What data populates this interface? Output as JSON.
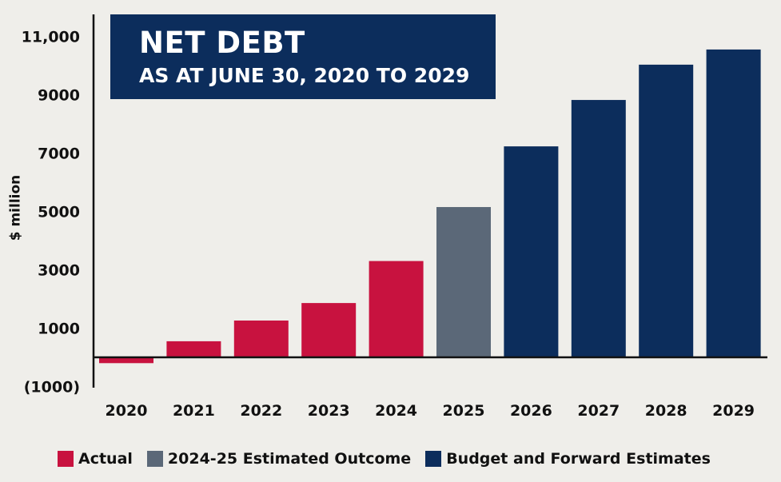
{
  "title": "NET DEBT",
  "subtitle": "AS AT JUNE 30, 2020 TO 2029",
  "chart_data": {
    "type": "bar",
    "title": "NET DEBT",
    "subtitle": "AS AT JUNE 30, 2020 TO 2029",
    "xlabel": "",
    "ylabel": "$ million",
    "ylim": [
      -1000,
      11000
    ],
    "yticks": [
      -1000,
      1000,
      3000,
      5000,
      7000,
      9000,
      11000
    ],
    "ytick_labels": [
      "(1000)",
      "1000",
      "3000",
      "5000",
      "7000",
      "9000",
      "11,000"
    ],
    "categories": [
      "2020",
      "2021",
      "2022",
      "2023",
      "2024",
      "2025",
      "2026",
      "2027",
      "2028",
      "2029"
    ],
    "values": [
      -200,
      550,
      1260,
      1860,
      3300,
      5150,
      7230,
      8820,
      10030,
      10550
    ],
    "bar_series": [
      "Actual",
      "Actual",
      "Actual",
      "Actual",
      "Actual",
      "2024-25 Estimated Outcome",
      "Budget and Forward Estimates",
      "Budget and Forward Estimates",
      "Budget and Forward Estimates",
      "Budget and Forward Estimates"
    ],
    "series": [
      {
        "name": "Actual",
        "color": "#c8123f"
      },
      {
        "name": "2024-25 Estimated Outcome",
        "color": "#5b6878"
      },
      {
        "name": "Budget and Forward Estimates",
        "color": "#0c2d5c"
      }
    ],
    "legend": "bottom",
    "grid": false
  }
}
